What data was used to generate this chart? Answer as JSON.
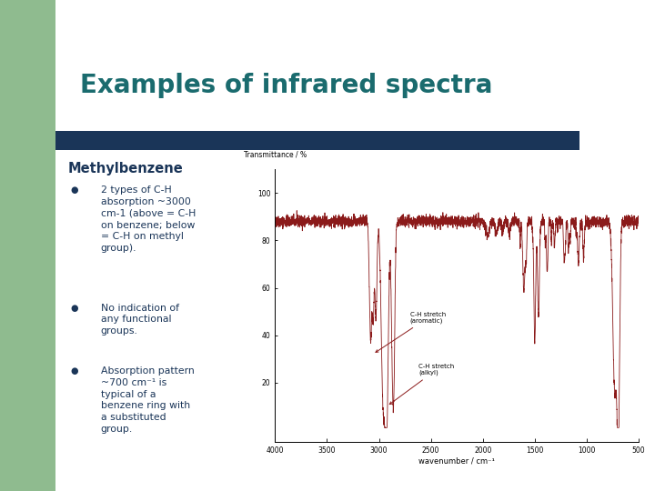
{
  "title": "Examples of infrared spectra",
  "title_color": "#1a6b6e",
  "title_fontsize": 20,
  "bg_color": "#ffffff",
  "green_color": "#8fbb8f",
  "blue_bar_color": "#1a3558",
  "compound_name": "Methylbenzene",
  "text_color": "#1a3558",
  "spectrum_line_color": "#8b1a1a",
  "xlabel": "wavenumber / cm⁻¹",
  "ylabel": "Transmittance / %",
  "xmin": 4000,
  "xmax": 500,
  "annotation1_label": "C-H stretch\n(aromatic)",
  "annotation2_label": "C-H stretch\n(alkyl)",
  "bullet1": "2 types of C-H\nabsorption ~3000\ncm-1 (above = C-H\non benzene; below\n= C-H on methyl\ngroup).",
  "bullet2": "No indication of\nany functional\ngroups.",
  "bullet3": "Absorption pattern\n~700 cm⁻¹ is\ntypical of a\nbenzene ring with\na substituted\ngroup."
}
